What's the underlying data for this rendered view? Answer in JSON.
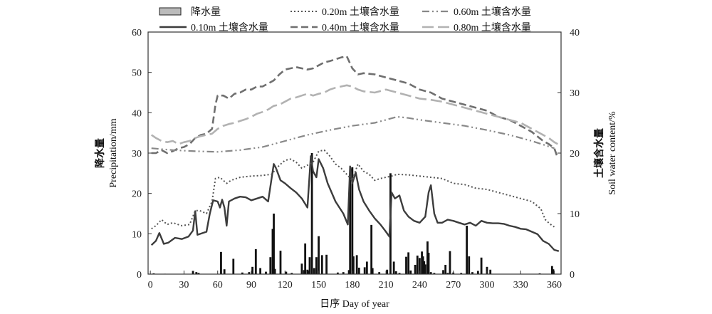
{
  "chart_data": {
    "type": "bar+line",
    "xlabel": "日序 Day  of year",
    "ylabel_left_cn": "降水量",
    "ylabel_left_en": "Precipitation/mm",
    "ylabel_right_cn": "土壤含水量",
    "ylabel_right_en": "Soil water content/%",
    "xlim": [
      -2,
      366
    ],
    "ylim_left": [
      0,
      60
    ],
    "ylim_right": [
      0,
      40
    ],
    "x_ticks": [
      0,
      30,
      60,
      90,
      120,
      150,
      180,
      210,
      240,
      270,
      300,
      330,
      360
    ],
    "y_left_ticks": [
      0,
      10,
      20,
      30,
      40,
      50,
      60
    ],
    "y_right_ticks": [
      0,
      10,
      20,
      30,
      40
    ],
    "legend": [
      {
        "label": "降水量",
        "kind": "bar",
        "color": "#bbbbbb"
      },
      {
        "label": "0.10m 土壤含水量",
        "kind": "line",
        "color": "#3c3c3c",
        "dash": "solid"
      },
      {
        "label": "0.20m 土壤含水量",
        "kind": "line",
        "color": "#555555",
        "dash": "dot"
      },
      {
        "label": "0.40m 土壤含水量",
        "kind": "line",
        "color": "#6f6f6f",
        "dash": "dash"
      },
      {
        "label": "0.60m 土壤含水量",
        "kind": "line",
        "color": "#888888",
        "dash": "dashdotdot"
      },
      {
        "label": "0.80m 土壤含水量",
        "kind": "line",
        "color": "#b2b2b2",
        "dash": "longdash"
      }
    ],
    "precipitation": {
      "name": "降水量",
      "days": [
        3,
        13,
        38,
        41,
        43,
        63,
        66,
        74,
        82,
        88,
        91,
        94,
        98,
        103,
        107,
        109,
        110,
        111,
        116,
        121,
        126,
        135,
        137,
        138,
        140,
        141,
        142,
        144,
        146,
        148,
        150,
        153,
        157,
        167,
        172,
        177,
        178,
        180,
        181,
        184,
        186,
        191,
        193,
        197,
        198,
        204,
        211,
        214,
        217,
        219,
        222,
        228,
        230,
        232,
        236,
        238,
        240,
        242,
        243,
        244,
        245,
        247,
        248,
        250,
        253,
        261,
        263,
        265,
        267,
        270,
        277,
        282,
        284,
        287,
        292,
        295,
        300,
        303,
        347,
        358,
        359
      ],
      "values": [
        0.2,
        0.1,
        0.8,
        0.5,
        0.3,
        5.5,
        1.2,
        3.8,
        0.4,
        0.5,
        1.8,
        6.2,
        1.5,
        0.6,
        4.2,
        11.2,
        15.0,
        1.3,
        5.8,
        0.6,
        0.3,
        2.6,
        1.0,
        7.6,
        1.1,
        0.8,
        4.2,
        30.0,
        1.5,
        4.2,
        9.4,
        4.7,
        4.8,
        0.4,
        0.5,
        1.0,
        24.0,
        26.5,
        4.4,
        4.7,
        1.6,
        1.7,
        3.1,
        12.2,
        1.5,
        0.5,
        1.1,
        25.0,
        3.1,
        0.7,
        0.3,
        4.3,
        5.4,
        0.9,
        2.3,
        4.6,
        4.0,
        5.6,
        4.4,
        3.2,
        2.4,
        8.1,
        5.3,
        0.5,
        0.3,
        1.0,
        2.3,
        0.3,
        5.7,
        0.4,
        0.3,
        12.0,
        4.4,
        0.5,
        0.8,
        4.1,
        1.8,
        1.1,
        0.2,
        2.0,
        1.2
      ]
    },
    "soil_moisture_series": [
      {
        "name": "0.10m 土壤含水量",
        "x": [
          1,
          5,
          8,
          12,
          16,
          22,
          28,
          34,
          38,
          40,
          42,
          50,
          53,
          56,
          60,
          62,
          64,
          66,
          68,
          70,
          75,
          80,
          85,
          90,
          95,
          100,
          105,
          110,
          112,
          116,
          120,
          125,
          130,
          135,
          140,
          143,
          145,
          148,
          150,
          154,
          158,
          165,
          172,
          176,
          178,
          180,
          183,
          186,
          190,
          195,
          200,
          205,
          210,
          213,
          215,
          218,
          222,
          226,
          230,
          235,
          240,
          245,
          248,
          250,
          253,
          256,
          260,
          265,
          270,
          275,
          280,
          285,
          290,
          295,
          300,
          305,
          310,
          315,
          320,
          325,
          330,
          335,
          340,
          345,
          350,
          355,
          360,
          364
        ],
        "y": [
          4.8,
          5.5,
          6.8,
          5.0,
          5.2,
          6.0,
          5.8,
          6.2,
          7.2,
          10.4,
          6.5,
          7.0,
          10.0,
          12.2,
          12.0,
          11.0,
          12.3,
          11.0,
          8.0,
          12.0,
          12.5,
          12.8,
          12.7,
          12.2,
          12.5,
          12.8,
          12.0,
          18.2,
          17.5,
          15.5,
          15.0,
          14.2,
          13.5,
          12.5,
          11.0,
          19.5,
          17.0,
          16.0,
          19.0,
          17.5,
          15.0,
          12.0,
          10.0,
          8.2,
          17.8,
          15.0,
          16.8,
          14.0,
          12.0,
          10.5,
          9.2,
          8.2,
          7.0,
          6.2,
          13.5,
          12.5,
          13.0,
          10.5,
          9.5,
          8.8,
          8.5,
          9.5,
          13.5,
          14.7,
          10.0,
          8.5,
          8.5,
          9.0,
          8.8,
          8.5,
          8.2,
          8.5,
          8.0,
          8.8,
          8.5,
          8.4,
          8.4,
          8.3,
          8.0,
          7.8,
          7.5,
          7.4,
          7.0,
          6.6,
          5.5,
          5.0,
          4.0,
          3.8
        ]
      },
      {
        "name": "0.20m 土壤含水量",
        "x": [
          1,
          5,
          10,
          15,
          20,
          28,
          35,
          40,
          44,
          50,
          55,
          58,
          62,
          68,
          72,
          80,
          90,
          100,
          108,
          115,
          120,
          125,
          130,
          135,
          140,
          145,
          150,
          155,
          160,
          165,
          170,
          175,
          180,
          185,
          190,
          195,
          200,
          205,
          210,
          215,
          220,
          230,
          240,
          250,
          260,
          270,
          280,
          290,
          300,
          310,
          320,
          330,
          340,
          348,
          352,
          356,
          360
        ],
        "y": [
          7.5,
          8.0,
          9.0,
          8.2,
          8.5,
          8.0,
          8.2,
          10.5,
          10.5,
          10.0,
          12.0,
          15.8,
          16.0,
          15.0,
          15.5,
          16.0,
          16.2,
          16.3,
          16.5,
          18.0,
          18.8,
          19.0,
          18.5,
          17.5,
          18.0,
          18.5,
          20.3,
          20.5,
          19.5,
          18.2,
          17.5,
          16.5,
          15.5,
          18.2,
          17.0,
          16.5,
          15.5,
          15.8,
          16.0,
          16.2,
          16.5,
          16.4,
          16.2,
          16.0,
          15.8,
          15.0,
          14.8,
          14.2,
          14.0,
          13.5,
          13.0,
          12.5,
          12.0,
          10.8,
          9.0,
          8.3,
          7.8
        ]
      },
      {
        "name": "0.40m 土壤含水量",
        "x": [
          1,
          5,
          10,
          15,
          20,
          25,
          30,
          35,
          40,
          45,
          50,
          55,
          58,
          60,
          65,
          70,
          75,
          80,
          85,
          90,
          95,
          100,
          105,
          110,
          115,
          120,
          125,
          130,
          135,
          140,
          145,
          150,
          155,
          160,
          165,
          170,
          175,
          180,
          185,
          190,
          200,
          210,
          220,
          230,
          240,
          250,
          260,
          270,
          280,
          290,
          300,
          310,
          320,
          330,
          340,
          350,
          355,
          360,
          363
        ],
        "y": [
          20.0,
          20.0,
          20.5,
          20.0,
          20.3,
          20.8,
          21.0,
          21.5,
          22.5,
          23.0,
          23.2,
          24.0,
          28.0,
          29.5,
          29.5,
          29.0,
          29.8,
          30.0,
          30.5,
          30.5,
          31.0,
          31.0,
          31.5,
          32.0,
          33.0,
          33.8,
          34.0,
          34.2,
          34.0,
          33.8,
          34.0,
          34.5,
          35.0,
          35.2,
          35.5,
          35.8,
          36.0,
          34.0,
          33.0,
          33.2,
          33.0,
          32.5,
          32.0,
          31.5,
          30.5,
          30.0,
          29.0,
          28.5,
          28.0,
          27.5,
          27.0,
          26.0,
          25.5,
          24.5,
          23.5,
          22.0,
          21.5,
          20.8,
          19.2
        ]
      },
      {
        "name": "0.60m 土壤含水量",
        "x": [
          1,
          20,
          40,
          60,
          80,
          100,
          120,
          140,
          160,
          180,
          200,
          210,
          220,
          230,
          240,
          260,
          280,
          300,
          320,
          340,
          360
        ],
        "y": [
          20.8,
          20.5,
          20.3,
          20.2,
          20.5,
          21.0,
          22.0,
          23.0,
          23.8,
          24.5,
          25.0,
          25.5,
          26.0,
          25.8,
          25.5,
          25.0,
          24.5,
          23.8,
          23.0,
          22.0,
          20.8
        ]
      },
      {
        "name": "0.80m 土壤含水量",
        "x": [
          1,
          5,
          10,
          15,
          20,
          25,
          30,
          35,
          40,
          45,
          50,
          55,
          60,
          65,
          70,
          75,
          80,
          85,
          90,
          95,
          100,
          105,
          110,
          115,
          120,
          125,
          130,
          135,
          140,
          145,
          150,
          155,
          160,
          165,
          170,
          175,
          180,
          185,
          190,
          200,
          210,
          220,
          230,
          240,
          250,
          260,
          270,
          280,
          290,
          300,
          310,
          320,
          330,
          340,
          350,
          355,
          360,
          363
        ],
        "y": [
          23.0,
          22.5,
          22.0,
          21.8,
          22.0,
          21.5,
          21.8,
          22.0,
          22.5,
          22.8,
          23.0,
          23.2,
          24.0,
          24.5,
          24.8,
          25.0,
          25.3,
          25.6,
          26.0,
          26.5,
          26.8,
          27.2,
          27.8,
          28.0,
          28.5,
          29.0,
          29.2,
          29.5,
          29.8,
          29.5,
          29.8,
          30.0,
          30.5,
          30.8,
          31.0,
          31.2,
          31.0,
          30.5,
          30.2,
          30.0,
          30.5,
          30.0,
          29.5,
          29.0,
          28.8,
          28.5,
          28.0,
          27.5,
          27.0,
          26.5,
          26.0,
          25.5,
          25.0,
          24.0,
          23.0,
          22.5,
          21.8,
          21.5
        ]
      }
    ]
  }
}
